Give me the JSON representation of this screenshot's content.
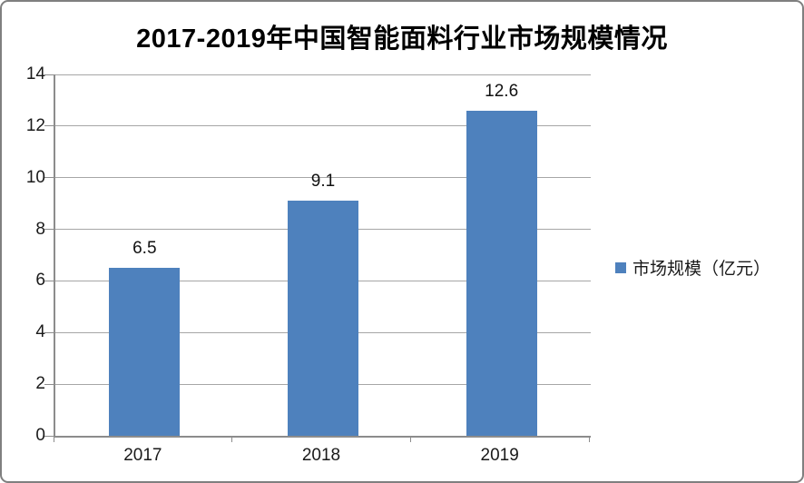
{
  "title": "2017-2019年中国智能面料行业市场规模情况",
  "legend": {
    "label": "市场规模（亿元）",
    "marker_color": "#4e81bd"
  },
  "colors": {
    "bar": "#4e81bd",
    "gridline": "#a6a6a6",
    "axis": "#8c8c8c",
    "frame_border": "#7f7f7f",
    "text": "#1a1a1a"
  },
  "chart_data": {
    "type": "bar",
    "title": "2017-2019年中国智能面料行业市场规模情况",
    "categories": [
      "2017",
      "2018",
      "2019"
    ],
    "values": [
      6.5,
      9.1,
      12.6
    ],
    "data_labels": [
      "6.5",
      "9.1",
      "12.6"
    ],
    "series_name": "市场规模（亿元）",
    "xlabel": "",
    "ylabel": "",
    "ylim": [
      0,
      14
    ],
    "yticks": [
      0,
      2,
      4,
      6,
      8,
      10,
      12,
      14
    ],
    "grid": true,
    "legend_position": "right",
    "bar_color": "#4e81bd"
  }
}
